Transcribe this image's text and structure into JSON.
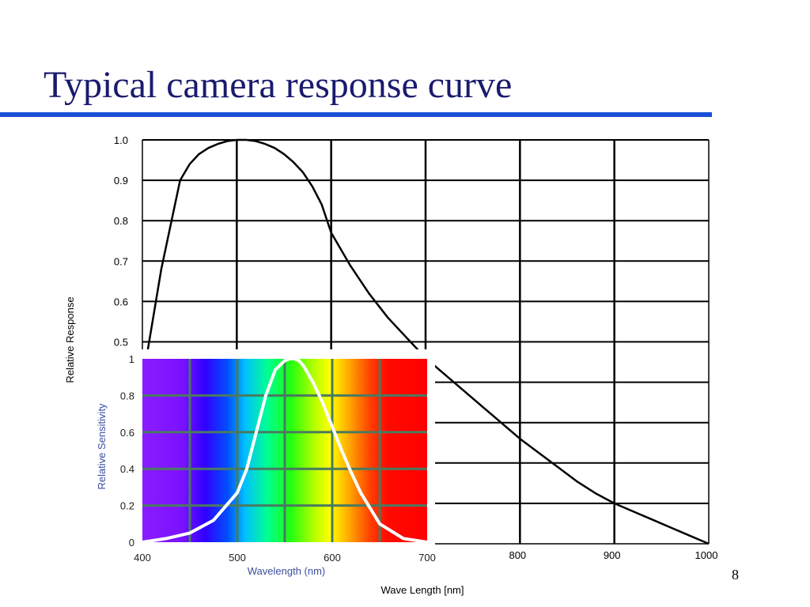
{
  "slide": {
    "title": "Typical camera response curve",
    "page_number": "8",
    "rule_color": "#1a4fd6",
    "title_color": "#1a1a6e"
  },
  "chart_data": [
    {
      "type": "line",
      "xlabel": "Wave  Length  [nm]",
      "ylabel": "Relative  Response",
      "xlim": [
        400,
        1000
      ],
      "ylim": [
        0,
        1.0
      ],
      "x_ticks": [
        "400",
        "500",
        "600",
        "700",
        "800",
        "900",
        "1000"
      ],
      "y_ticks": [
        "0.5",
        "0.6",
        "0.7",
        "0.8",
        "0.9",
        "1.0"
      ],
      "grid": true,
      "series": [
        {
          "color": "#000000",
          "x": [
            400,
            420,
            440,
            450,
            460,
            470,
            480,
            490,
            500,
            510,
            520,
            530,
            540,
            550,
            560,
            570,
            580,
            590,
            600,
            620,
            640,
            660,
            680,
            700,
            720,
            740,
            760,
            780,
            800,
            820,
            840,
            860,
            880,
            900,
            920,
            940,
            960,
            980,
            1000
          ],
          "y": [
            0.4,
            0.68,
            0.9,
            0.94,
            0.965,
            0.98,
            0.99,
            0.997,
            1.0,
            1.0,
            0.997,
            0.99,
            0.98,
            0.965,
            0.945,
            0.92,
            0.885,
            0.84,
            0.77,
            0.69,
            0.62,
            0.56,
            0.51,
            0.46,
            0.42,
            0.38,
            0.34,
            0.3,
            0.26,
            0.225,
            0.19,
            0.155,
            0.125,
            0.1,
            0.08,
            0.06,
            0.04,
            0.02,
            0.0
          ]
        }
      ]
    },
    {
      "type": "line",
      "xlabel": "Wavelength (nm)",
      "ylabel": "Relative Sensitivity",
      "xlim": [
        400,
        700
      ],
      "ylim": [
        0,
        1
      ],
      "x_ticks": [
        "400",
        "500",
        "600",
        "700"
      ],
      "y_ticks": [
        "0",
        "0.2",
        "0.4",
        "0.6",
        "0.8",
        "1"
      ],
      "grid": true,
      "background": "visible spectrum gradient",
      "series": [
        {
          "color": "#ffffff",
          "x": [
            400,
            425,
            450,
            475,
            500,
            510,
            520,
            530,
            540,
            550,
            555,
            560,
            565,
            570,
            580,
            590,
            600,
            610,
            620,
            630,
            650,
            675,
            700
          ],
          "y": [
            0.0,
            0.02,
            0.05,
            0.12,
            0.27,
            0.4,
            0.6,
            0.8,
            0.94,
            0.99,
            1.0,
            1.0,
            0.99,
            0.96,
            0.87,
            0.76,
            0.63,
            0.5,
            0.38,
            0.27,
            0.1,
            0.02,
            0.0
          ]
        }
      ]
    }
  ]
}
